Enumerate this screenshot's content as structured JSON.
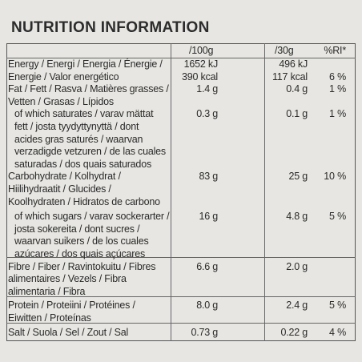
{
  "title": "NUTRITION INFORMATION",
  "table": {
    "header": {
      "per100g": "/100g",
      "per30g": "/30g",
      "ri": "%RI*"
    },
    "rows": [
      {
        "name": [
          "Energy / Energi / Energia / Énergie /",
          "Energie / Valor energético"
        ],
        "per100g": [
          "1652 kJ",
          "390 kcal"
        ],
        "per30g": [
          "496 kJ",
          "117 kcal"
        ],
        "ri": [
          "6 %"
        ],
        "riLine": 1
      },
      {
        "name": [
          "Fat / Fett / Rasva / Matières grasses /",
          "Vetten / Grasas / Lípidos"
        ],
        "per100g": [
          "1.4 g"
        ],
        "per30g": [
          "0.4 g"
        ],
        "ri": [
          "1 %"
        ]
      },
      {
        "name": [
          "of which saturates / varav mättat",
          "fett / josta tyydyttynyttä / dont",
          "acides gras saturés / waarvan",
          "verzadigde vetzuren / de las cuales",
          "saturadas / dos quais saturados"
        ],
        "per100g": [
          "0.3 g"
        ],
        "per30g": [
          "0.1 g"
        ],
        "ri": [
          "1 %"
        ],
        "indent": true
      },
      {
        "name": [
          "Carbohydrate / Kolhydrat /",
          "Hiilihydraatit / Glucides /",
          "Koolhydraten / Hidratos de carbono"
        ],
        "per100g": [
          "83 g"
        ],
        "per30g": [
          "25 g"
        ],
        "ri": [
          "10 %"
        ]
      },
      {
        "name": [
          "of which sugars / varav sockerarter /",
          "josta sokereita / dont sucres /",
          "waarvan suikers / de los cuales",
          "azúcares / dos quais açúcares"
        ],
        "per100g": [
          "16 g"
        ],
        "per30g": [
          "4.8 g"
        ],
        "ri": [
          "5 %"
        ],
        "indent": true
      },
      {
        "name": [
          "Fibre / Fiber / Ravintokuitu / Fibres",
          "alimentaires / Vezels / Fibra",
          "alimentaria / Fibra"
        ],
        "per100g": [
          "6.6 g"
        ],
        "per30g": [
          "2.0 g"
        ],
        "ri": []
      },
      {
        "name": [
          "Protein / Proteiini / Protéines /",
          "Eiwitten / Proteínas"
        ],
        "per100g": [
          "8.0 g"
        ],
        "per30g": [
          "2.4 g"
        ],
        "ri": [
          "5 %"
        ]
      },
      {
        "name": [
          "Salt / Suola / Sel / Zout / Sal"
        ],
        "per100g": [
          "0.73 g"
        ],
        "per30g": [
          "0.22 g"
        ],
        "ri": [
          "4 %"
        ]
      }
    ]
  }
}
